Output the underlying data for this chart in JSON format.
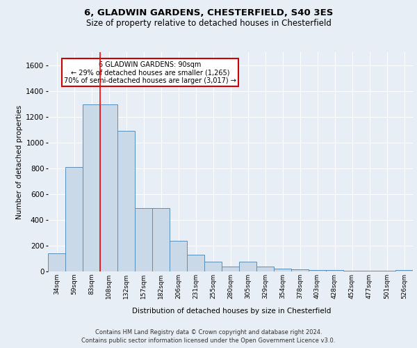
{
  "title_line1": "6, GLADWIN GARDENS, CHESTERFIELD, S40 3ES",
  "title_line2": "Size of property relative to detached houses in Chesterfield",
  "xlabel": "Distribution of detached houses by size in Chesterfield",
  "ylabel": "Number of detached properties",
  "bin_labels": [
    "34sqm",
    "59sqm",
    "83sqm",
    "108sqm",
    "132sqm",
    "157sqm",
    "182sqm",
    "206sqm",
    "231sqm",
    "255sqm",
    "280sqm",
    "305sqm",
    "329sqm",
    "354sqm",
    "378sqm",
    "403sqm",
    "428sqm",
    "452sqm",
    "477sqm",
    "501sqm",
    "526sqm"
  ],
  "bar_heights": [
    140,
    810,
    1295,
    1295,
    1090,
    490,
    490,
    235,
    130,
    75,
    40,
    75,
    40,
    20,
    15,
    10,
    10,
    5,
    5,
    5,
    10
  ],
  "bar_color": "#c9d9e8",
  "bar_edge_color": "#5b8db8",
  "ylim": [
    0,
    1700
  ],
  "yticks": [
    0,
    200,
    400,
    600,
    800,
    1000,
    1200,
    1400,
    1600
  ],
  "red_line_x": 2,
  "annotation_title": "6 GLADWIN GARDENS: 90sqm",
  "annotation_line2": "← 29% of detached houses are smaller (1,265)",
  "annotation_line3": "70% of semi-detached houses are larger (3,017) →",
  "annotation_box_color": "#ffffff",
  "annotation_border_color": "#cc0000",
  "footer_line1": "Contains HM Land Registry data © Crown copyright and database right 2024.",
  "footer_line2": "Contains public sector information licensed under the Open Government Licence v3.0.",
  "background_color": "#e8eef5",
  "plot_bg_color": "#e8eef5",
  "grid_color": "#ffffff"
}
